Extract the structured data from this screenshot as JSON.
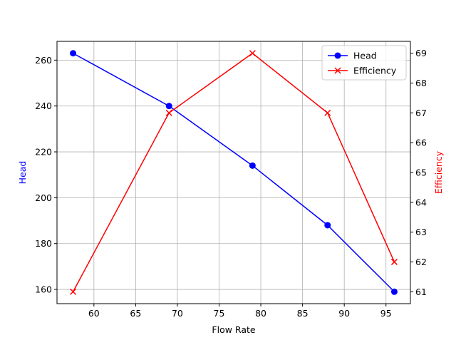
{
  "chart_data": {
    "type": "line",
    "x_label": "Flow Rate",
    "y_label": "Head",
    "y2_label": "Efficiency",
    "x": [
      57.5,
      69,
      79,
      88,
      96
    ],
    "series": [
      {
        "name": "Head",
        "color": "#0000ff",
        "marker": "o",
        "values": [
          263,
          240,
          214,
          188,
          159
        ]
      },
      {
        "name": "Efficiency",
        "color": "#ff0000",
        "marker": "x",
        "axis": "y2",
        "values": [
          61,
          67,
          69,
          67,
          62
        ]
      }
    ],
    "xlim": [
      55.575,
      97.925
    ],
    "xticks": [
      60,
      65,
      70,
      75,
      80,
      85,
      90,
      95
    ],
    "ylim": [
      153.8,
      268.2
    ],
    "yticks": [
      160,
      180,
      200,
      220,
      240,
      260
    ],
    "y2lim": [
      60.6,
      69.4
    ],
    "y2ticks": [
      61,
      62,
      63,
      64,
      65,
      66,
      67,
      68,
      69
    ],
    "grid": true,
    "legend": "upper right"
  }
}
